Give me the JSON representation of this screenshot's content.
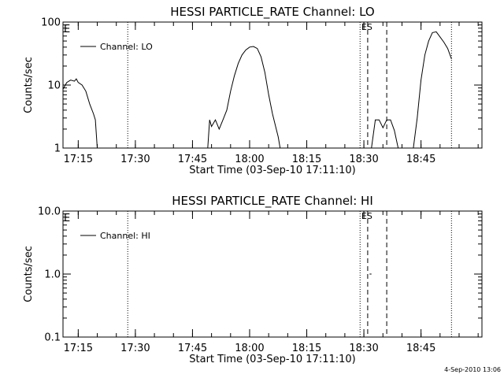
{
  "footer_timestamp": "4-Sep-2010 13:06",
  "chart_data": [
    {
      "type": "line",
      "title": "HESSI PARTICLE_RATE Channel: LO",
      "xlabel": "Start Time (03-Sep-10 17:11:10)",
      "ylabel": "Counts/sec",
      "y_scale": "log",
      "ylim": [
        1,
        100
      ],
      "yticks": [
        {
          "v": 1,
          "label": "1"
        },
        {
          "v": 10,
          "label": "10"
        },
        {
          "v": 100,
          "label": "100"
        }
      ],
      "xlim": [
        "17:11",
        "19:01"
      ],
      "xticks": [
        "17:15",
        "17:30",
        "17:45",
        "18:00",
        "18:15",
        "18:30",
        "18:45"
      ],
      "corner_label_left": "E",
      "legend": {
        "entries": [
          "Channel: LO"
        ],
        "placement": "top-left"
      },
      "series": [
        {
          "name": "Channel: LO",
          "segments": [
            [
              [
                "17:11",
                8.6
              ],
              [
                "17:12",
                11
              ],
              [
                "17:13",
                12
              ],
              [
                "17:14",
                11.5
              ],
              [
                "17:14.5",
                12.5
              ],
              [
                "17:15",
                11
              ],
              [
                "17:16",
                10
              ],
              [
                "17:17",
                8
              ],
              [
                "17:18",
                5
              ],
              [
                "17:19",
                3.5
              ],
              [
                "17:19.5",
                2.8
              ],
              [
                "17:20",
                1
              ]
            ],
            [
              [
                "17:49",
                1
              ],
              [
                "17:49.5",
                2.8
              ],
              [
                "17:50",
                2.2
              ],
              [
                "17:51",
                2.8
              ],
              [
                "17:52",
                2
              ],
              [
                "17:53",
                2.8
              ],
              [
                "17:54",
                4
              ],
              [
                "17:55",
                8
              ],
              [
                "17:56",
                14
              ],
              [
                "17:57",
                22
              ],
              [
                "17:58",
                30
              ],
              [
                "17:59",
                36
              ],
              [
                "18:00",
                40
              ],
              [
                "18:01",
                41
              ],
              [
                "18:02",
                38
              ],
              [
                "18:03",
                28
              ],
              [
                "18:04",
                16
              ],
              [
                "18:05",
                7
              ],
              [
                "18:06",
                3.5
              ],
              [
                "18:07",
                2
              ],
              [
                "18:07.5",
                1.5
              ],
              [
                "18:08",
                1
              ]
            ],
            [
              [
                "18:32",
                1
              ],
              [
                "18:33",
                2.8
              ],
              [
                "18:34",
                2.8
              ],
              [
                "18:35",
                2.1
              ],
              [
                "18:36",
                2.8
              ],
              [
                "18:37",
                2.8
              ],
              [
                "18:38",
                1.9
              ],
              [
                "18:39",
                1
              ]
            ],
            [
              [
                "18:43",
                1
              ],
              [
                "18:44",
                3
              ],
              [
                "18:45",
                12
              ],
              [
                "18:46",
                30
              ],
              [
                "18:47",
                50
              ],
              [
                "18:48",
                68
              ],
              [
                "18:49",
                70
              ],
              [
                "18:50",
                58
              ],
              [
                "18:51",
                48
              ],
              [
                "18:52",
                38
              ],
              [
                "18:53",
                26
              ]
            ]
          ]
        }
      ],
      "markers": [
        {
          "x": "17:28",
          "style": "dotted"
        },
        {
          "x": "18:29",
          "style": "dotted"
        },
        {
          "x": "18:31",
          "style": "dashed"
        },
        {
          "x": "18:36",
          "style": "dashed"
        },
        {
          "x": "18:53",
          "style": "dotted"
        }
      ],
      "marker_label": {
        "text": "ES",
        "x": "18:31"
      }
    },
    {
      "type": "line",
      "title": "HESSI PARTICLE_RATE Channel: HI",
      "xlabel": "Start Time (03-Sep-10 17:11:10)",
      "ylabel": "Counts/sec",
      "y_scale": "log",
      "ylim": [
        0.1,
        10
      ],
      "yticks": [
        {
          "v": 0.1,
          "label": "0.1"
        },
        {
          "v": 1,
          "label": "1.0"
        },
        {
          "v": 10,
          "label": "10.0"
        }
      ],
      "xlim": [
        "17:11",
        "19:01"
      ],
      "xticks": [
        "17:15",
        "17:30",
        "17:45",
        "18:00",
        "18:15",
        "18:30",
        "18:45"
      ],
      "corner_label_left": "E",
      "legend": {
        "entries": [
          "Channel: HI"
        ],
        "placement": "top-left"
      },
      "series": [
        {
          "name": "Channel: HI",
          "segments": [
            [
              [
                "18:31.5",
                1.0
              ],
              [
                "18:32",
                1.0
              ]
            ]
          ]
        }
      ],
      "markers": [
        {
          "x": "17:28",
          "style": "dotted"
        },
        {
          "x": "18:29",
          "style": "dotted"
        },
        {
          "x": "18:31",
          "style": "dashed"
        },
        {
          "x": "18:36",
          "style": "dashed"
        },
        {
          "x": "18:53",
          "style": "dotted"
        }
      ],
      "marker_label": {
        "text": "ES",
        "x": "18:31"
      }
    }
  ]
}
